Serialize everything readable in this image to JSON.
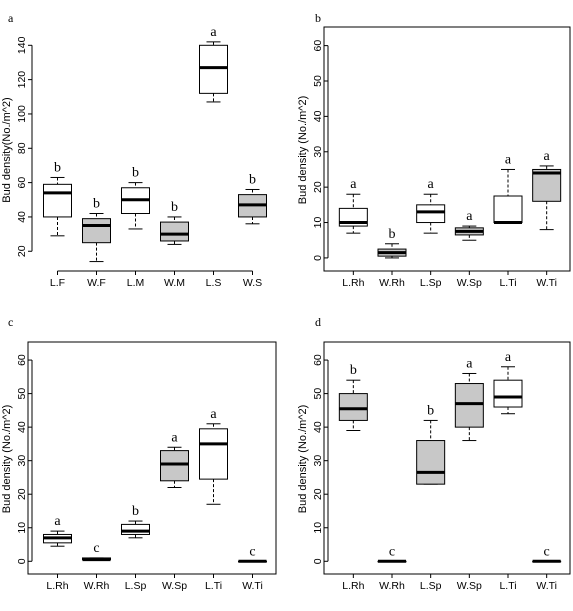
{
  "chart_data": [
    {
      "type": "box",
      "panel_label": "a",
      "ylabel": "Bud density(No./m^2)",
      "yticks": [
        20,
        40,
        60,
        80,
        100,
        120,
        140
      ],
      "ylim": [
        12,
        146
      ],
      "categories": [
        "L.F",
        "W.F",
        "L.M",
        "W.M",
        "L.S",
        "W.S"
      ],
      "fills": [
        "white",
        "gray",
        "white",
        "gray",
        "white",
        "gray"
      ],
      "boxes": [
        {
          "min": 29,
          "q1": 40,
          "median": 54,
          "q3": 59,
          "max": 63
        },
        {
          "min": 14,
          "q1": 25,
          "median": 35,
          "q3": 39,
          "max": 42
        },
        {
          "min": 33,
          "q1": 42,
          "median": 50,
          "q3": 57,
          "max": 60
        },
        {
          "min": 24,
          "q1": 26,
          "median": 30,
          "q3": 37,
          "max": 40
        },
        {
          "min": 107,
          "q1": 112,
          "median": 127,
          "q3": 140,
          "max": 142
        },
        {
          "min": 36,
          "q1": 40,
          "median": 47,
          "q3": 53,
          "max": 56
        }
      ],
      "letters": [
        "b",
        "b",
        "b",
        "b",
        "a",
        "b"
      ]
    },
    {
      "type": "box",
      "panel_label": "b",
      "ylabel": "Bud density (No./m^2)",
      "yticks": [
        0,
        10,
        20,
        30,
        40,
        50,
        60
      ],
      "ylim": [
        -2,
        63
      ],
      "categories": [
        "L.Rh",
        "W.Rh",
        "L.Sp",
        "W.Sp",
        "L.Ti",
        "W.Ti"
      ],
      "fills": [
        "white",
        "gray",
        "white",
        "gray",
        "white",
        "gray"
      ],
      "boxes": [
        {
          "min": 7,
          "q1": 9,
          "median": 10,
          "q3": 14,
          "max": 18
        },
        {
          "min": 0,
          "q1": 0.5,
          "median": 1.5,
          "q3": 2.5,
          "max": 4
        },
        {
          "min": 7,
          "q1": 10,
          "median": 13,
          "q3": 15,
          "max": 18
        },
        {
          "min": 5,
          "q1": 6.5,
          "median": 7.5,
          "q3": 8.5,
          "max": 9
        },
        {
          "min": 10,
          "q1": 10,
          "median": 10,
          "q3": 17.5,
          "max": 25
        },
        {
          "min": 8,
          "q1": 16,
          "median": 24,
          "q3": 25,
          "max": 26
        }
      ],
      "letters": [
        "a",
        "b",
        "a",
        "a",
        "a",
        "a"
      ]
    },
    {
      "type": "box",
      "panel_label": "c",
      "ylabel": "Bud density (No./m^2)",
      "yticks": [
        0,
        10,
        20,
        30,
        40,
        50,
        60
      ],
      "ylim": [
        -2,
        63
      ],
      "categories": [
        "L.Rh",
        "W.Rh",
        "L.Sp",
        "W.Sp",
        "L.Ti",
        "W.Ti"
      ],
      "fills": [
        "white",
        "gray",
        "white",
        "gray",
        "white",
        "gray"
      ],
      "boxes": [
        {
          "min": 4.5,
          "q1": 5.5,
          "median": 7,
          "q3": 8,
          "max": 9
        },
        {
          "min": 0.5,
          "q1": 0.5,
          "median": 0.5,
          "q3": 1,
          "max": 1
        },
        {
          "min": 7,
          "q1": 8,
          "median": 9,
          "q3": 11,
          "max": 12
        },
        {
          "min": 22,
          "q1": 24,
          "median": 29,
          "q3": 33,
          "max": 34
        },
        {
          "min": 17,
          "q1": 24.5,
          "median": 35,
          "q3": 39.5,
          "max": 41
        },
        {
          "min": 0,
          "q1": 0,
          "median": 0,
          "q3": 0,
          "max": 0
        }
      ],
      "letters": [
        "a",
        "c",
        "b",
        "a",
        "a",
        "c"
      ]
    },
    {
      "type": "box",
      "panel_label": "d",
      "ylabel": "Bud density (No./m^2)",
      "yticks": [
        0,
        10,
        20,
        30,
        40,
        50,
        60
      ],
      "ylim": [
        -2,
        63
      ],
      "categories": [
        "L.Rh",
        "W.Rh",
        "L.Sp",
        "W.Sp",
        "L.Ti",
        "W.Ti"
      ],
      "fills": [
        "gray",
        "white",
        "gray",
        "gray",
        "white",
        "white"
      ],
      "boxes": [
        {
          "min": 39,
          "q1": 42,
          "median": 45.5,
          "q3": 50,
          "max": 54
        },
        {
          "min": 0,
          "q1": 0,
          "median": 0,
          "q3": 0,
          "max": 0
        },
        {
          "min": 23,
          "q1": 23,
          "median": 26.5,
          "q3": 36,
          "max": 42
        },
        {
          "min": 36,
          "q1": 40,
          "median": 47,
          "q3": 53,
          "max": 56
        },
        {
          "min": 44,
          "q1": 46,
          "median": 49,
          "q3": 54,
          "max": 58
        },
        {
          "min": 0,
          "q1": 0,
          "median": 0,
          "q3": 0,
          "max": 0
        }
      ],
      "letters": [
        "b",
        "c",
        "b",
        "a",
        "a",
        "c"
      ]
    }
  ]
}
